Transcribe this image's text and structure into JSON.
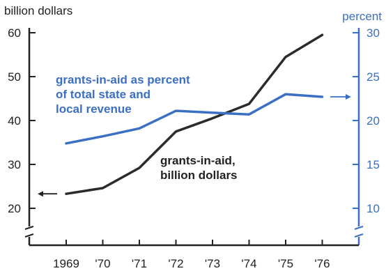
{
  "chart_data": {
    "type": "line",
    "title": "",
    "x": [
      "1969",
      "'70",
      "'71",
      "'72",
      "'73",
      "'74",
      "'75",
      "'76"
    ],
    "left_axis": {
      "label": "billion dollars",
      "ticks": [
        "60",
        "50",
        "40",
        "30",
        "20"
      ],
      "tick_values": [
        60,
        50,
        40,
        30,
        20
      ],
      "ylim": [
        15,
        62
      ]
    },
    "right_axis": {
      "label": "percent",
      "ticks": [
        "30",
        "25",
        "20",
        "15",
        "10"
      ],
      "tick_values": [
        30,
        25,
        20,
        15,
        10
      ],
      "ylim": [
        7.5,
        31
      ]
    },
    "series": [
      {
        "name": "grants-in-aid, billion dollars",
        "axis": "left",
        "color": "#2b2b2b",
        "values": [
          23.3,
          24.6,
          29.2,
          37.5,
          40.5,
          43.8,
          54.5,
          59.5
        ]
      },
      {
        "name": "grants-in-aid as percent of total state and local revenue",
        "axis": "right",
        "color": "#3b6fc4",
        "values": [
          17.4,
          18.2,
          19.1,
          21.1,
          20.9,
          20.7,
          23.0,
          22.7
        ]
      }
    ],
    "annotations": {
      "percent_text": "grants-in-aid as percent\nof total state and\nlocal revenue",
      "dollars_text": "grants-in-aid,\nbillion dollars"
    },
    "grid": false,
    "legend": "none (direct labels)"
  }
}
